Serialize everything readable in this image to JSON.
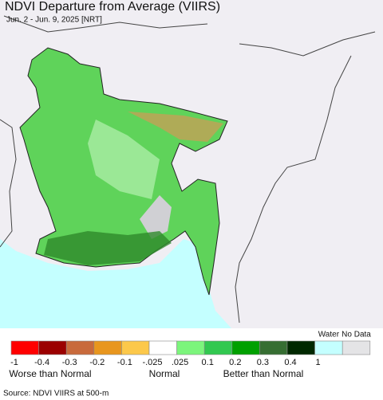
{
  "header": {
    "title": "NDVI Departure from Average (VIIRS)",
    "subtitle": "Jun. 2 - Jun. 9, 2025 [NRT]"
  },
  "legend": {
    "colors": [
      "#ff0000",
      "#9b0000",
      "#c86a3c",
      "#e8961e",
      "#fcc84a",
      "#ffffff",
      "#7cf57c",
      "#32c850",
      "#00a000",
      "#366e32",
      "#002800",
      "#c4ffff",
      "#e4e4e6"
    ],
    "tick_labels": [
      "-1",
      "-0.4",
      "-0.3",
      "-0.2",
      "-0.1",
      "-.025",
      ".025",
      "0.1",
      "0.2",
      "0.3",
      "0.4",
      "1"
    ],
    "water_label": "Water",
    "no_data_label": "No Data",
    "descriptors": [
      "Worse than Normal",
      "Normal",
      "Better than Normal"
    ]
  },
  "source": "Source: NDVI VIIRS at 500-m"
}
